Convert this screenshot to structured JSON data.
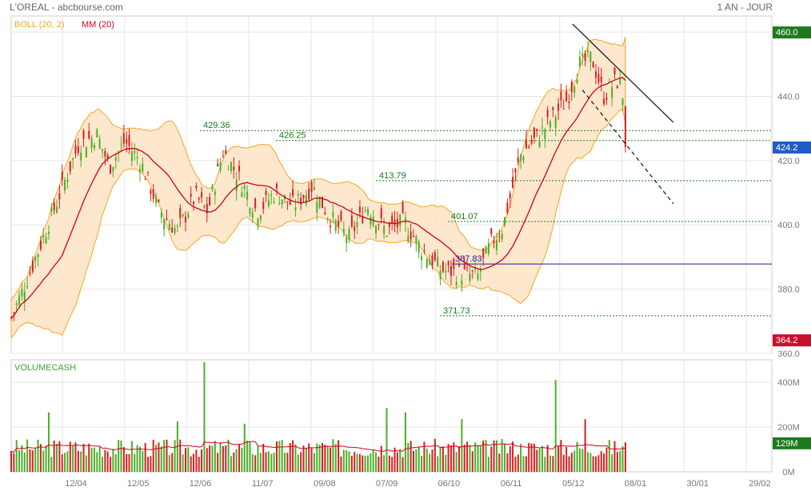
{
  "header": {
    "title": "L'OREAL - abcbourse.com",
    "period": "1 AN - JOUR"
  },
  "colors": {
    "boll": "#f5a623",
    "boll_fill": "#fde3c4",
    "ma": "#d0021b",
    "up": "#4caf28",
    "down": "#d62020",
    "volume_label": "#3aa635",
    "level_green": "#1a7a1a",
    "level_blue": "#1a1aa0",
    "badge_green": "#1f7a1f",
    "badge_blue": "#1f5cc8",
    "badge_red": "#c8102e",
    "grid": "#e6e6e6",
    "axis_text": "#777777"
  },
  "chart_data": [
    {
      "type": "candlestick",
      "legend": [
        "BOLL (20, 2)",
        "MM (20)"
      ],
      "y_ticks": [
        "360.0",
        "380.0",
        "400.0",
        "420.0",
        "440.0",
        "460.0"
      ],
      "ylim": [
        360,
        465
      ],
      "x_ticks": [
        "12/04",
        "12/05",
        "12/06",
        "11/07",
        "09/08",
        "07/09",
        "06/10",
        "06/11",
        "05/12",
        "08/01",
        "30/01",
        "29/02"
      ],
      "price_badges": [
        {
          "label": "460.0",
          "value": 460.0,
          "color": "green"
        },
        {
          "label": "424.2",
          "value": 424.2,
          "color": "blue"
        },
        {
          "label": "364.2",
          "value": 364.2,
          "color": "red"
        }
      ],
      "levels": [
        {
          "label": "429.36",
          "value": 429.36,
          "color": "green"
        },
        {
          "label": "426.25",
          "value": 426.25,
          "color": "green"
        },
        {
          "label": "413.79",
          "value": 413.79,
          "color": "green"
        },
        {
          "label": "401.07",
          "value": 401.07,
          "color": "green"
        },
        {
          "label": "387.83",
          "value": 387.83,
          "color": "blue"
        },
        {
          "label": "371.73",
          "value": 371.73,
          "color": "green"
        }
      ],
      "trendlines": [
        {
          "from": [
            0.914,
            462.5
          ],
          "to": [
            1.0,
            431.9
          ],
          "style": "solid"
        },
        {
          "from": [
            0.93,
            442.0
          ],
          "to": [
            1.0,
            406.6
          ],
          "style": "dashed"
        }
      ],
      "close_path": [
        [
          0.0,
          371
        ],
        [
          0.03,
          385
        ],
        [
          0.07,
          405
        ],
        [
          0.11,
          425
        ],
        [
          0.14,
          428
        ],
        [
          0.16,
          418
        ],
        [
          0.185,
          426
        ],
        [
          0.21,
          420
        ],
        [
          0.24,
          405
        ],
        [
          0.27,
          398
        ],
        [
          0.3,
          409
        ],
        [
          0.32,
          404
        ],
        [
          0.345,
          423
        ],
        [
          0.37,
          415
        ],
        [
          0.4,
          404
        ],
        [
          0.43,
          410
        ],
        [
          0.46,
          406
        ],
        [
          0.49,
          412
        ],
        [
          0.52,
          402
        ],
        [
          0.55,
          396
        ],
        [
          0.58,
          406
        ],
        [
          0.61,
          398
        ],
        [
          0.64,
          401
        ],
        [
          0.67,
          392
        ],
        [
          0.7,
          386
        ],
        [
          0.73,
          385
        ],
        [
          0.76,
          384
        ],
        [
          0.78,
          394
        ],
        [
          0.8,
          399
        ],
        [
          0.83,
          422
        ],
        [
          0.86,
          428
        ],
        [
          0.88,
          433
        ],
        [
          0.905,
          439
        ],
        [
          0.925,
          450
        ],
        [
          0.945,
          452
        ],
        [
          0.965,
          440
        ],
        [
          0.985,
          445
        ],
        [
          0.995,
          443
        ],
        [
          1.0,
          424.2
        ]
      ]
    },
    {
      "type": "bar",
      "title": "VOLUMECASH",
      "y_ticks": [
        "0M",
        "200M",
        "400M"
      ],
      "ylim": [
        0,
        500
      ],
      "badge": {
        "label": "129M",
        "value": 129,
        "color": "green"
      },
      "base_level": 118,
      "spikes": [
        {
          "pos": 0.06,
          "value": 265,
          "dir": "down"
        },
        {
          "pos": 0.27,
          "value": 225,
          "dir": "down"
        },
        {
          "pos": 0.315,
          "value": 490,
          "dir": "up"
        },
        {
          "pos": 0.38,
          "value": 215,
          "dir": "up"
        },
        {
          "pos": 0.61,
          "value": 285,
          "dir": "up"
        },
        {
          "pos": 0.64,
          "value": 265,
          "dir": "up"
        },
        {
          "pos": 0.735,
          "value": 235,
          "dir": "down"
        },
        {
          "pos": 0.885,
          "value": 410,
          "dir": "down"
        },
        {
          "pos": 0.935,
          "value": 235,
          "dir": "up"
        }
      ]
    }
  ]
}
